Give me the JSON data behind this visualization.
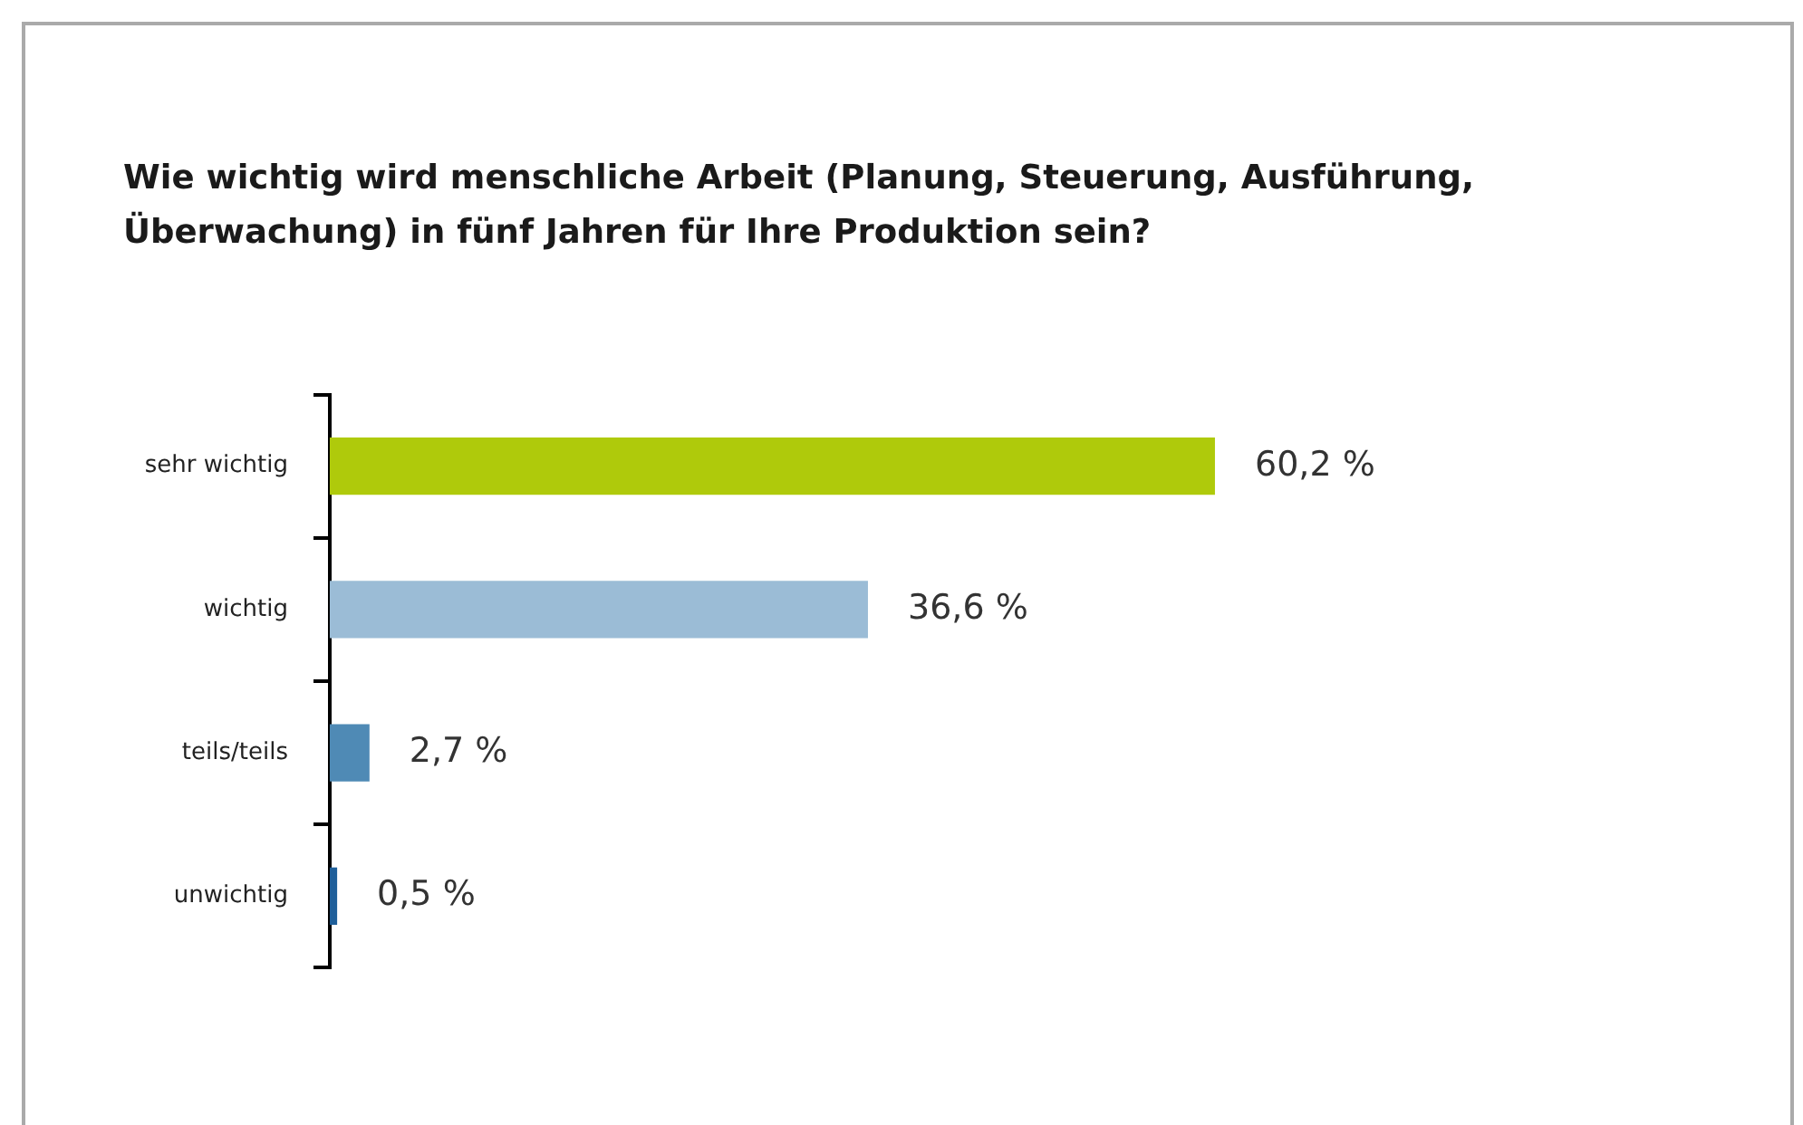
{
  "chart_data": {
    "type": "bar",
    "orientation": "horizontal",
    "title": "Wie wichtig wird menschliche Arbeit (Planung, Steuerung, Ausführung, Überwachung) in fünf Jahren für Ihre Produktion sein?",
    "categories": [
      "sehr wichtig",
      "wichtig",
      "teils/teils",
      "unwichtig"
    ],
    "values": [
      60.2,
      36.6,
      2.7,
      0.5
    ],
    "colors": [
      "#afca0b",
      "#9bbcd6",
      "#4f8ab5",
      "#1f5f9a"
    ],
    "value_labels": [
      "60,2 %",
      "36,6 %",
      "2,7 %",
      "0,5 %"
    ],
    "tick_labels": "y"
  }
}
